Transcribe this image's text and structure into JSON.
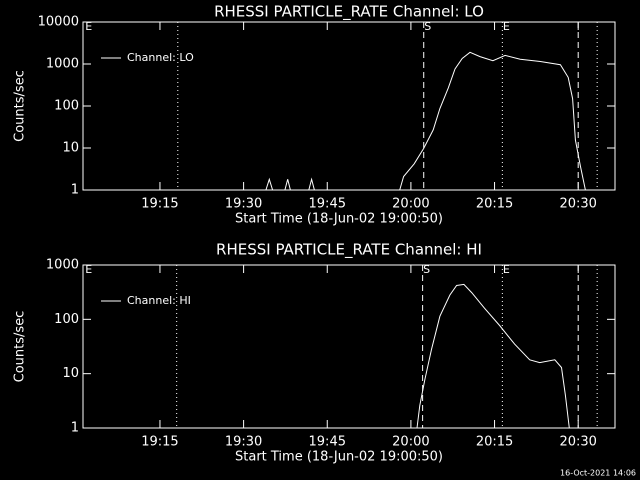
{
  "chart_data": [
    {
      "type": "line",
      "title": "RHESSI PARTICLE_RATE Channel: LO",
      "xlabel": "Start Time (18-Jun-02 19:00:50)",
      "ylabel": "Counts/sec",
      "x": [
        1.2,
        34.0,
        34.6,
        35.2,
        37.4,
        37.9,
        38.4,
        41.7,
        42.2,
        42.7,
        58.0,
        58.7,
        60.6,
        62.3,
        64.0,
        65.2,
        66.7,
        67.9,
        69.2,
        70.6,
        72.4,
        74.7,
        76.9,
        79.6,
        83.2,
        86.8,
        88.2,
        89.0,
        89.5,
        90.4,
        91.3
      ],
      "series": [
        {
          "name": "Channel: LO",
          "color": "#ffffff",
          "values": [
            1,
            1,
            1.8,
            1,
            1,
            1.8,
            1,
            1,
            1.8,
            1,
            1,
            2.1,
            4.2,
            9.8,
            27,
            87,
            270,
            760,
            1350,
            1900,
            1500,
            1200,
            1600,
            1300,
            1150,
            960,
            480,
            150,
            15.5,
            3.7,
            1
          ]
        }
      ],
      "xlim": [
        1.2,
        96.6
      ],
      "ylim": [
        1,
        10000
      ],
      "log_y": true,
      "legend": "upper left",
      "xticks": [
        {
          "value": 15,
          "label": "19:15"
        },
        {
          "value": 30,
          "label": "19:30"
        },
        {
          "value": 45,
          "label": "19:45"
        },
        {
          "value": 60,
          "label": "20:00"
        },
        {
          "value": 75,
          "label": "20:15"
        },
        {
          "value": 90,
          "label": "20:30"
        }
      ],
      "yticks": [
        1,
        10,
        100,
        1000,
        10000
      ],
      "markers": [
        {
          "x": 1.5,
          "label": "E"
        },
        {
          "x": 18.2,
          "style": "dotted"
        },
        {
          "x": 62.3,
          "style": "dashed",
          "label": "S"
        },
        {
          "x": 76.4,
          "style": "dotted",
          "label": "E"
        },
        {
          "x": 90.0,
          "style": "dashed"
        },
        {
          "x": 93.4,
          "style": "dotted"
        }
      ]
    },
    {
      "type": "line",
      "title": "RHESSI PARTICLE_RATE Channel: HI",
      "xlabel": "Start Time (18-Jun-02 19:00:50)",
      "ylabel": "Counts/sec",
      "x": [
        61.1,
        61.6,
        62.5,
        63.7,
        65.2,
        67.0,
        68.2,
        69.5,
        70.9,
        73.2,
        75.9,
        78.6,
        81.3,
        83.1,
        85.8,
        87.0,
        87.7,
        88.4
      ],
      "series": [
        {
          "name": "Channel: HI",
          "color": "#ffffff",
          "values": [
            1,
            2.6,
            7.7,
            28,
            114,
            280,
            420,
            440,
            310,
            160,
            77,
            35,
            18,
            16,
            18,
            13,
            4,
            1
          ]
        }
      ],
      "xlim": [
        1.2,
        96.6
      ],
      "ylim": [
        1,
        1000
      ],
      "log_y": true,
      "legend": "upper left",
      "xticks": [
        {
          "value": 15,
          "label": "19:15"
        },
        {
          "value": 30,
          "label": "19:30"
        },
        {
          "value": 45,
          "label": "19:45"
        },
        {
          "value": 60,
          "label": "20:00"
        },
        {
          "value": 75,
          "label": "20:15"
        },
        {
          "value": 90,
          "label": "20:30"
        }
      ],
      "yticks": [
        1,
        10,
        100,
        1000
      ],
      "markers": [
        {
          "x": 1.5,
          "label": "E"
        },
        {
          "x": 18.0,
          "style": "dotted"
        },
        {
          "x": 62.1,
          "style": "dashed",
          "label": "S"
        },
        {
          "x": 76.4,
          "style": "dotted",
          "label": "E"
        },
        {
          "x": 90.0,
          "style": "dashed"
        },
        {
          "x": 93.4,
          "style": "dotted"
        }
      ]
    }
  ],
  "footer": "16-Oct-2021 14:06"
}
